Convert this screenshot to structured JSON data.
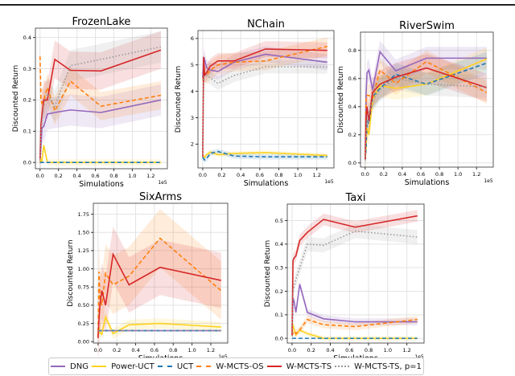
{
  "chart_data": [
    {
      "type": "line",
      "title": "FrozenLake",
      "xlabel": "Simulations",
      "ylabel": "Discounted Return",
      "x_scale_label": "1e5",
      "xlim": [
        -0.05,
        1.38
      ],
      "ylim": [
        -0.02,
        0.43
      ],
      "xticks": [
        0.0,
        0.2,
        0.4,
        0.6,
        0.8,
        1.0,
        1.2
      ],
      "yticks": [
        0.0,
        0.1,
        0.2,
        0.3,
        0.4
      ],
      "grid": true,
      "x": [
        0,
        0.01,
        0.02,
        0.04,
        0.08,
        0.16,
        0.33,
        0.66,
        1.31
      ],
      "series": [
        {
          "name": "DNG",
          "values": [
            0,
            0.05,
            0.11,
            0.115,
            0.155,
            0.16,
            0.168,
            0.16,
            0.2
          ],
          "band": 0.05
        },
        {
          "name": "Power-UCT",
          "values": [
            0,
            0.01,
            0,
            0.055,
            0,
            0,
            0,
            0,
            0
          ],
          "band": 0.01
        },
        {
          "name": "UCT",
          "values": [
            0,
            0,
            0,
            0,
            0,
            0,
            0,
            0,
            0
          ],
          "band": 0.0
        },
        {
          "name": "W-MCTS-OS",
          "values": [
            0.34,
            0.2,
            0.19,
            0.2,
            0.24,
            0.165,
            0.26,
            0.18,
            0.215
          ],
          "band": 0.045
        },
        {
          "name": "W-MCTS-TS",
          "values": [
            0.01,
            0.12,
            0.15,
            0.2,
            0.2,
            0.33,
            0.295,
            0.293,
            0.36
          ],
          "band": 0.06
        },
        {
          "name": "W-MCTS-TS, p=1",
          "values": [
            0.01,
            0.1,
            0.13,
            0.18,
            0.22,
            0.18,
            0.31,
            0.33,
            0.37
          ],
          "band": 0.05
        }
      ]
    },
    {
      "type": "line",
      "title": "NChain",
      "xlabel": "Simulations",
      "ylabel": "Discounted Return",
      "x_scale_label": "1e5",
      "xlim": [
        -0.05,
        1.38
      ],
      "ylim": [
        1.1,
        6.3
      ],
      "xticks": [
        0.0,
        0.2,
        0.4,
        0.6,
        0.8,
        1.0,
        1.2
      ],
      "yticks": [
        2,
        3,
        4,
        5,
        6
      ],
      "grid": true,
      "x": [
        0,
        0.01,
        0.02,
        0.04,
        0.08,
        0.16,
        0.33,
        0.66,
        1.31
      ],
      "series": [
        {
          "name": "DNG",
          "values": [
            4.5,
            5.3,
            5.2,
            4.9,
            4.8,
            4.75,
            5.1,
            5.4,
            5.1
          ],
          "band": 0.3
        },
        {
          "name": "Power-UCT",
          "values": [
            1.5,
            1.55,
            1.5,
            1.6,
            1.7,
            1.6,
            1.65,
            1.68,
            1.57
          ],
          "band": 0.08
        },
        {
          "name": "UCT",
          "values": [
            1.5,
            1.45,
            1.4,
            1.45,
            1.65,
            1.72,
            1.55,
            1.52,
            1.52
          ],
          "band": 0.1
        },
        {
          "name": "W-MCTS-OS",
          "values": [
            4.4,
            4.6,
            4.7,
            4.6,
            4.8,
            5.0,
            5.1,
            5.15,
            5.7
          ],
          "band": 0.35
        },
        {
          "name": "W-MCTS-TS",
          "values": [
            1.5,
            5.3,
            4.6,
            4.7,
            4.95,
            5.15,
            5.15,
            5.6,
            5.55
          ],
          "band": 0.3
        },
        {
          "name": "W-MCTS-TS, p=1",
          "values": [
            1.5,
            4.5,
            4.6,
            4.6,
            4.5,
            4.3,
            4.6,
            4.93,
            4.92
          ],
          "band": 0.25
        }
      ]
    },
    {
      "type": "line",
      "title": "RiverSwim",
      "xlabel": "Simulations",
      "ylabel": "Discounted Return",
      "x_scale_label": "1e5",
      "xlim": [
        -0.05,
        1.38
      ],
      "ylim": [
        -0.03,
        0.93
      ],
      "xticks": [
        0.0,
        0.2,
        0.4,
        0.6,
        0.8,
        1.0,
        1.2
      ],
      "yticks": [
        0.0,
        0.2,
        0.4,
        0.6,
        0.8
      ],
      "grid": true,
      "x": [
        0,
        0.01,
        0.02,
        0.04,
        0.08,
        0.16,
        0.33,
        0.66,
        1.31
      ],
      "series": [
        {
          "name": "DNG",
          "values": [
            0.02,
            0.48,
            0.64,
            0.66,
            0.52,
            0.79,
            0.655,
            0.745,
            0.745
          ],
          "band": 0.08
        },
        {
          "name": "Power-UCT",
          "values": [
            0.02,
            0.1,
            0.25,
            0.2,
            0.45,
            0.55,
            0.53,
            0.56,
            0.74
          ],
          "band": 0.08
        },
        {
          "name": "UCT",
          "values": [
            0.02,
            0.1,
            0.3,
            0.28,
            0.47,
            0.53,
            0.63,
            0.56,
            0.71
          ],
          "band": 0.08
        },
        {
          "name": "W-MCTS-OS",
          "values": [
            0.02,
            0.47,
            0.48,
            0.48,
            0.46,
            0.66,
            0.565,
            0.72,
            0.5
          ],
          "band": 0.08
        },
        {
          "name": "W-MCTS-TS",
          "values": [
            0.02,
            0.3,
            0.4,
            0.3,
            0.5,
            0.56,
            0.61,
            0.675,
            0.535
          ],
          "band": 0.1
        },
        {
          "name": "W-MCTS-TS, p=1",
          "values": [
            0.02,
            0.2,
            0.3,
            0.35,
            0.45,
            0.52,
            0.6,
            0.56,
            0.54
          ],
          "band": 0.08
        }
      ]
    },
    {
      "type": "line",
      "title": "SixArms",
      "xlabel": "Simulations",
      "ylabel": "Discounted Return",
      "x_scale_label": "1e5",
      "xlim": [
        -0.05,
        1.38
      ],
      "ylim": [
        -0.02,
        1.9
      ],
      "xticks": [
        0.0,
        0.2,
        0.4,
        0.6,
        0.8,
        1.0,
        1.2
      ],
      "yticks": [
        0.0,
        0.25,
        0.5,
        0.75,
        1.0,
        1.25,
        1.5,
        1.75
      ],
      "grid": true,
      "x": [
        0,
        0.01,
        0.02,
        0.04,
        0.08,
        0.16,
        0.33,
        0.66,
        1.31
      ],
      "series": [
        {
          "name": "DNG",
          "values": [
            0.15,
            0.15,
            0.15,
            0.15,
            0.15,
            0.15,
            0.15,
            0.15,
            0.15
          ],
          "band": 0.01
        },
        {
          "name": "Power-UCT",
          "values": [
            0.1,
            0.2,
            0.12,
            0.1,
            0.34,
            0.11,
            0.23,
            0.25,
            0.2
          ],
          "band": 0.07
        },
        {
          "name": "UCT",
          "values": [
            0.15,
            0.15,
            0.15,
            0.15,
            0.15,
            0.15,
            0.15,
            0.15,
            0.15
          ],
          "band": 0.0
        },
        {
          "name": "W-MCTS-OS",
          "values": [
            0.05,
            0.96,
            0.6,
            0.5,
            0.94,
            0.78,
            0.9,
            1.42,
            0.7
          ],
          "band": 0.4
        },
        {
          "name": "W-MCTS-TS",
          "values": [
            0.05,
            0.3,
            0.5,
            0.7,
            0.5,
            1.2,
            0.78,
            1.02,
            0.84
          ],
          "band": 0.38
        },
        {
          "name": "W-MCTS-TS, p=1",
          "values": [
            0.15,
            0.15,
            0.15,
            0.15,
            0.15,
            0.15,
            0.15,
            0.15,
            0.15
          ],
          "band": 0.01
        }
      ]
    },
    {
      "type": "line",
      "title": "Taxi",
      "xlabel": "Simulations",
      "ylabel": "Discounted Return",
      "x_scale_label": "1e5",
      "xlim": [
        -0.05,
        1.38
      ],
      "ylim": [
        -0.02,
        0.57
      ],
      "xticks": [
        0.0,
        0.2,
        0.4,
        0.6,
        0.8,
        1.0,
        1.2
      ],
      "yticks": [
        0.0,
        0.1,
        0.2,
        0.3,
        0.4,
        0.5
      ],
      "grid": true,
      "x": [
        0,
        0.01,
        0.02,
        0.04,
        0.08,
        0.16,
        0.33,
        0.66,
        1.31
      ],
      "series": [
        {
          "name": "DNG",
          "values": [
            0.02,
            0.17,
            0.16,
            0.11,
            0.23,
            0.11,
            0.083,
            0.07,
            0.07
          ],
          "band": 0.015
        },
        {
          "name": "Power-UCT",
          "values": [
            0.02,
            0.06,
            0.04,
            0.015,
            0.035,
            0.02,
            0,
            0,
            0
          ],
          "band": 0.01
        },
        {
          "name": "UCT",
          "values": [
            0,
            0,
            0,
            0,
            0,
            0,
            0,
            0,
            0
          ],
          "band": 0.0
        },
        {
          "name": "W-MCTS-OS",
          "values": [
            0.01,
            0.025,
            0.03,
            0.02,
            0.035,
            0.08,
            0.058,
            0.05,
            0.08
          ],
          "band": 0.015
        },
        {
          "name": "W-MCTS-TS",
          "values": [
            0.01,
            0.33,
            0.34,
            0.35,
            0.415,
            0.45,
            0.505,
            0.472,
            0.52
          ],
          "band": 0.025
        },
        {
          "name": "W-MCTS-TS, p=1",
          "values": [
            0.01,
            0.2,
            0.22,
            0.25,
            0.3,
            0.4,
            0.395,
            0.455,
            0.43
          ],
          "band": 0.03
        }
      ]
    }
  ],
  "legend": {
    "position": "bottom",
    "items": [
      {
        "label": "DNG",
        "color": "#9467bd",
        "style": "solid"
      },
      {
        "label": "Power-UCT",
        "color": "#ffd21f",
        "style": "solid"
      },
      {
        "label": "UCT",
        "color": "#1f77b4",
        "style": "dashed"
      },
      {
        "label": "W-MCTS-OS",
        "color": "#ff7f0e",
        "style": "dashed"
      },
      {
        "label": "W-MCTS-TS",
        "color": "#d62728",
        "style": "solid"
      },
      {
        "label": "W-MCTS-TS, p=1",
        "color": "#999999",
        "style": "dotted"
      }
    ]
  }
}
